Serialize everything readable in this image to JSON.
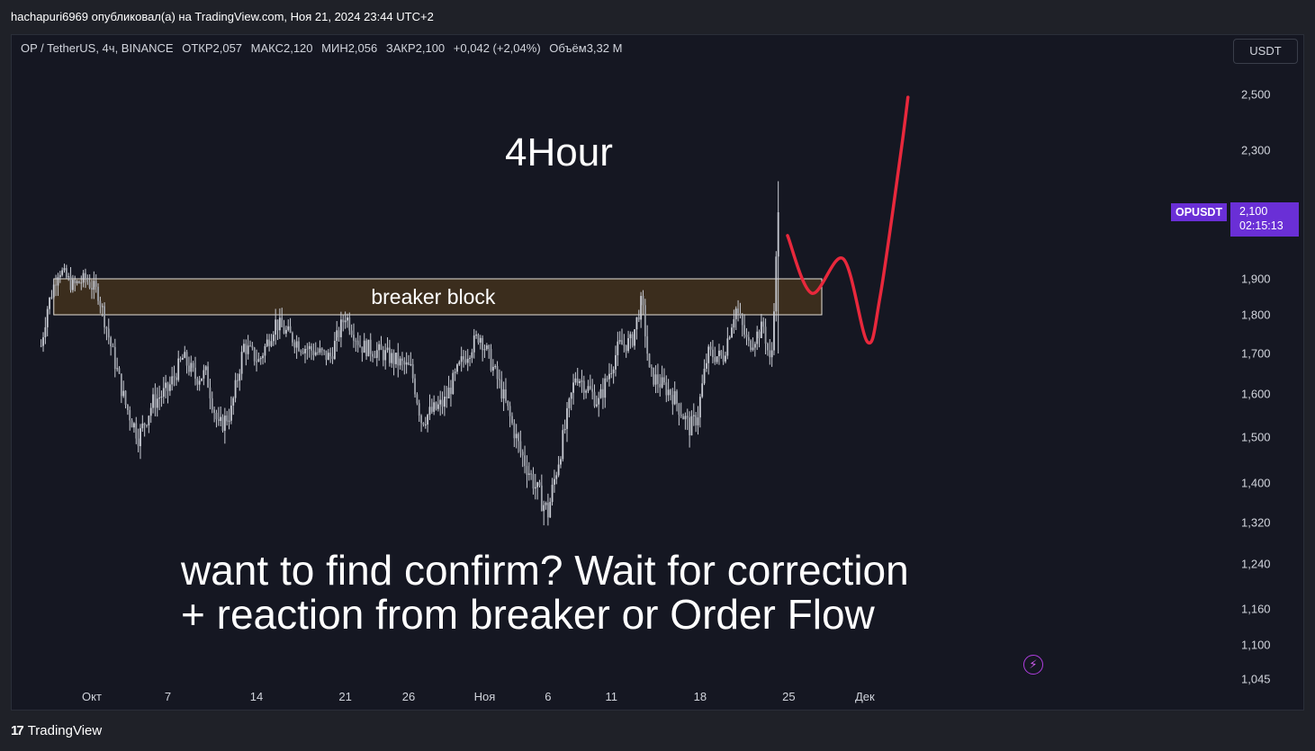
{
  "header": {
    "publish_info": "hachapuri6969 опубликовал(а) на TradingView.com, Ноя 21, 2024 23:44 UTC+2"
  },
  "legend": {
    "symbol": "OP / TetherUS, 4ч, BINANCE",
    "open": "ОТКР2,057",
    "high": "МАКС2,120",
    "low": "МИН2,056",
    "close": "ЗАКР2,100",
    "change": "+0,042 (+2,04%)",
    "volume": "Объём3,32 M"
  },
  "currency_button": "USDT",
  "price_tag": {
    "ticker": "OPUSDT",
    "price": "2,100",
    "countdown": "02:15:13"
  },
  "footer": {
    "brand": "TradingView",
    "brand_mark": "17"
  },
  "colors": {
    "background": "#151722",
    "candle": "#c9ccd4",
    "zone_fill": "#3d2e1e",
    "zone_border": "#e6e1d8",
    "projection": "#e8283c",
    "badge": "#6a2fd6",
    "text": "#d1d4dc"
  },
  "icons": {
    "flash": "lightning-icon",
    "logo": "tradingview-logo-icon"
  },
  "chart_data": {
    "type": "candlestick",
    "title": "",
    "annotations": [
      {
        "id": "timeframe",
        "text": "4Hour"
      },
      {
        "id": "breaker",
        "text": "breaker block"
      },
      {
        "id": "note_line1",
        "text": "want to find confirm? Wait for correction"
      },
      {
        "id": "note_line2",
        "text": "+ reaction from breaker or Order Flow"
      }
    ],
    "y_ticks": [
      2.5,
      2.3,
      2.1,
      1.9,
      1.8,
      1.7,
      1.6,
      1.5,
      1.4,
      1.32,
      1.24,
      1.16,
      1.1,
      1.045
    ],
    "y_tick_labels": [
      "2,500",
      "2,300",
      "2,100",
      "1,900",
      "1,800",
      "1,700",
      "1,600",
      "1,500",
      "1,400",
      "1,320",
      "1,240",
      "1,160",
      "1,100",
      "1,045"
    ],
    "x_labels": [
      "Окт",
      "7",
      "14",
      "21",
      "26",
      "Ноя",
      "6",
      "11",
      "18",
      "25",
      "Дек"
    ],
    "x_label_days": [
      0,
      6,
      13,
      20,
      25,
      31,
      36,
      41,
      48,
      55,
      61
    ],
    "breaker_block": {
      "from_day": -3,
      "to_day": 57.6,
      "low": 1.8,
      "high": 1.9
    },
    "last_price": 2.1,
    "price_keypoints": [
      [
        -4.0,
        1.72
      ],
      [
        -3.5,
        1.82
      ],
      [
        -2.6,
        1.93
      ],
      [
        -1.5,
        1.88
      ],
      [
        -0.5,
        1.9
      ],
      [
        0.5,
        1.86
      ],
      [
        1.5,
        1.72
      ],
      [
        2.6,
        1.58
      ],
      [
        3.7,
        1.5
      ],
      [
        4.8,
        1.58
      ],
      [
        6.0,
        1.61
      ],
      [
        7.2,
        1.69
      ],
      [
        8.2,
        1.64
      ],
      [
        9.0,
        1.65
      ],
      [
        10.0,
        1.52
      ],
      [
        11.0,
        1.56
      ],
      [
        12.0,
        1.72
      ],
      [
        13.2,
        1.68
      ],
      [
        14.5,
        1.78
      ],
      [
        16.5,
        1.72
      ],
      [
        18.8,
        1.69
      ],
      [
        20.0,
        1.8
      ],
      [
        21.2,
        1.72
      ],
      [
        23.0,
        1.7
      ],
      [
        25.2,
        1.66
      ],
      [
        26.0,
        1.54
      ],
      [
        27.8,
        1.58
      ],
      [
        29.2,
        1.68
      ],
      [
        30.6,
        1.75
      ],
      [
        32.2,
        1.62
      ],
      [
        33.8,
        1.47
      ],
      [
        35.2,
        1.38
      ],
      [
        36.0,
        1.34
      ],
      [
        37.2,
        1.5
      ],
      [
        38.2,
        1.65
      ],
      [
        40.0,
        1.58
      ],
      [
        41.6,
        1.72
      ],
      [
        42.6,
        1.73
      ],
      [
        43.4,
        1.84
      ],
      [
        44.0,
        1.65
      ],
      [
        45.8,
        1.6
      ],
      [
        47.2,
        1.52
      ],
      [
        47.8,
        1.55
      ],
      [
        48.6,
        1.7
      ],
      [
        49.8,
        1.69
      ],
      [
        50.8,
        1.82
      ],
      [
        51.8,
        1.72
      ],
      [
        53.0,
        1.77
      ],
      [
        53.6,
        1.66
      ],
      [
        54.2,
        2.1
      ]
    ],
    "projection_path": [
      [
        54.9,
        2.03
      ],
      [
        56.8,
        1.86
      ],
      [
        59.3,
        1.96
      ],
      [
        61.2,
        1.73
      ],
      [
        62.2,
        1.85
      ],
      [
        63.8,
        2.28
      ],
      [
        64.4,
        2.49
      ]
    ]
  }
}
